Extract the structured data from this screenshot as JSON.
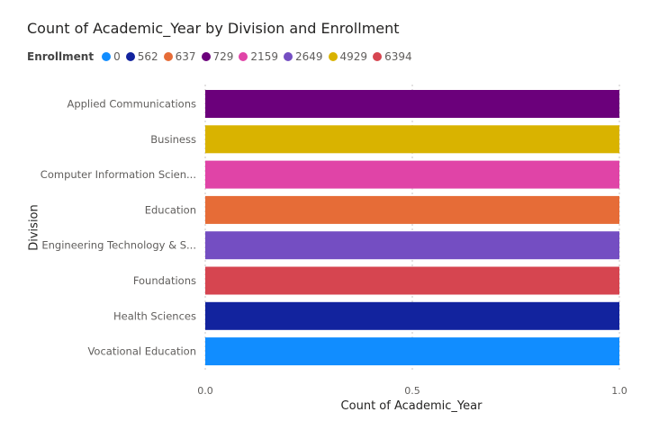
{
  "chart_data": {
    "type": "bar",
    "orientation": "horizontal",
    "title": "Count of Academic_Year by Division and Enrollment",
    "xlabel": "Count of Academic_Year",
    "ylabel": "Division",
    "xlim": [
      0,
      1
    ],
    "xticks": [
      "0.0",
      "0.5",
      "1.0"
    ],
    "grid": true,
    "legend_title": "Enrollment",
    "legend_position": "top-left",
    "legend": [
      {
        "label": "0",
        "color": "#118DFF"
      },
      {
        "label": "562",
        "color": "#12239E"
      },
      {
        "label": "637",
        "color": "#E66C37"
      },
      {
        "label": "729",
        "color": "#6B007B"
      },
      {
        "label": "2159",
        "color": "#E044A7"
      },
      {
        "label": "2649",
        "color": "#744EC2"
      },
      {
        "label": "4929",
        "color": "#D9B300"
      },
      {
        "label": "6394",
        "color": "#D64550"
      }
    ],
    "categories": [
      "Applied Communications",
      "Business",
      "Computer Information Scien...",
      "Education",
      "Engineering Technology & S...",
      "Foundations",
      "Health Sciences",
      "Vocational Education"
    ],
    "values": [
      1,
      1,
      1,
      1,
      1,
      1,
      1,
      1
    ],
    "bar_enrollment": [
      "729",
      "4929",
      "2159",
      "637",
      "2649",
      "6394",
      "562",
      "0"
    ]
  }
}
